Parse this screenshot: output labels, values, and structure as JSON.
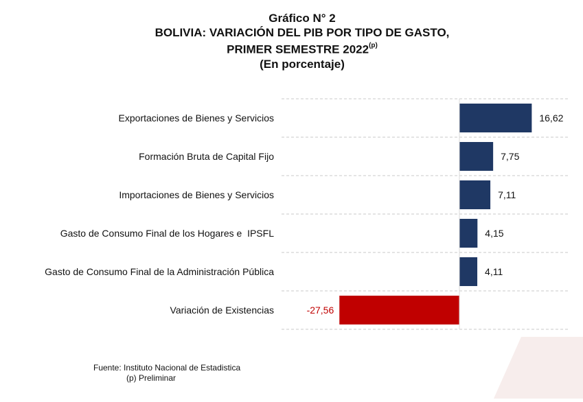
{
  "chart_title": {
    "line1": "Gráfico N° 2",
    "line2": "BOLIVIA: VARIACIÓN DEL PIB POR TIPO DE GASTO,",
    "line3": "PRIMER SEMESTRE 2022",
    "line3_sup": "(p)",
    "line4": "(En porcentaje)"
  },
  "chart_data": {
    "type": "bar",
    "orientation": "horizontal",
    "categories": [
      "Exportaciones de Bienes y Servicios",
      "Formación Bruta de Capital Fijo",
      "Importaciones de Bienes y Servicios",
      "Gasto de Consumo Final de los Hogares e  IPSFL",
      "Gasto de Consumo Final de la Administración Pública",
      "Variación de Existencias"
    ],
    "values": [
      16.62,
      7.75,
      7.11,
      4.15,
      4.11,
      -27.56
    ],
    "value_labels": [
      "16,62",
      "7,75",
      "7,11",
      "4,15",
      "4,11",
      "-27,56"
    ],
    "colors": {
      "positive": "#1F3864",
      "negative": "#C00000",
      "negative_label": "#C00000",
      "label": "#111111",
      "gridline": "#C8C8C8"
    },
    "xlim": [
      -30,
      18
    ],
    "grid": true,
    "legend": "none"
  },
  "source": {
    "line1": "Fuente: Instituto Nacional de Estadistica",
    "line2": "(p) Preliminar"
  }
}
